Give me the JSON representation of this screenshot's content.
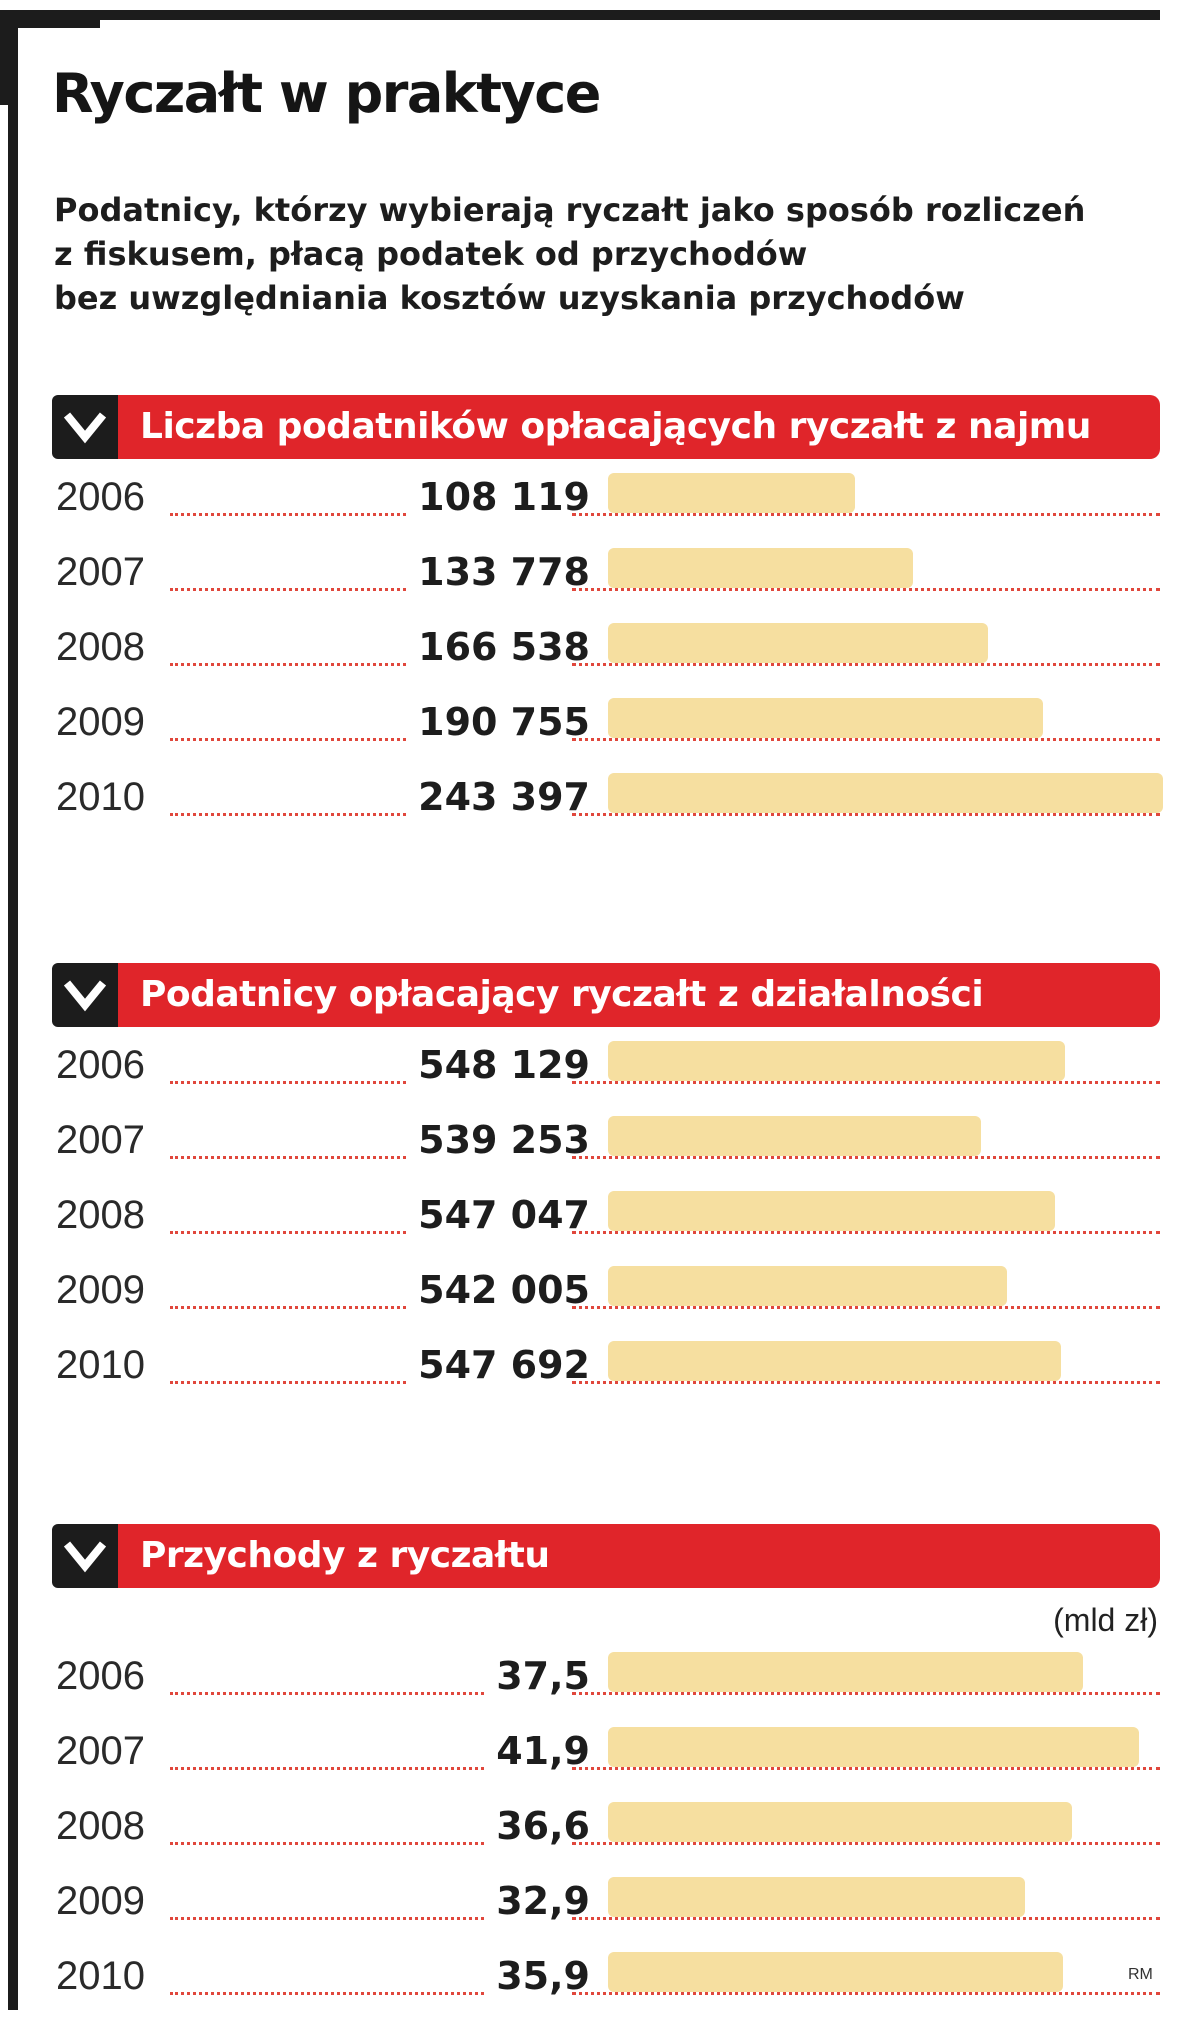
{
  "title": "Ryczałt w praktyce",
  "subtitle_lines": [
    "Podatnicy, którzy wybierają ryczałt jako sposób rozliczeń",
    "z fiskusem, płacą podatek od przychodów",
    "bez uwzględniania kosztów uzyskania przychodów"
  ],
  "credit": "RM",
  "colors": {
    "header": "#e0252a",
    "bar": "#f6dfa0",
    "dots": "#e0473c",
    "dark": "#1c1c1c"
  },
  "icons": {
    "header_marker": "chevron-down-icon"
  },
  "chart_data": [
    {
      "type": "bar",
      "orientation": "horizontal",
      "title": "Liczba podatników opłacających ryczałt z najmu",
      "unit": "",
      "categories": [
        "2006",
        "2007",
        "2008",
        "2009",
        "2010"
      ],
      "value_labels": [
        "108 119",
        "133 778",
        "166 538",
        "190 755",
        "243 397"
      ],
      "values": [
        108119,
        133778,
        166538,
        190755,
        243397
      ],
      "xlim": [
        0,
        250000
      ]
    },
    {
      "type": "bar",
      "orientation": "horizontal",
      "title": "Podatnicy opłacający ryczałt z działalności",
      "unit": "",
      "categories": [
        "2006",
        "2007",
        "2008",
        "2009",
        "2010"
      ],
      "value_labels": [
        "548 129",
        "539 253",
        "547 047",
        "542 005",
        "547 692"
      ],
      "values": [
        548129,
        539253,
        547047,
        542005,
        547692
      ],
      "xlim": [
        500000,
        560000
      ]
    },
    {
      "type": "bar",
      "orientation": "horizontal",
      "title": "Przychody z ryczałtu",
      "unit": "(mld zł)",
      "categories": [
        "2006",
        "2007",
        "2008",
        "2009",
        "2010"
      ],
      "value_labels": [
        "37,5",
        "41,9",
        "36,6",
        "32,9",
        "35,9"
      ],
      "values": [
        37.5,
        41.9,
        36.6,
        32.9,
        35.9
      ],
      "xlim": [
        0,
        45
      ]
    }
  ]
}
